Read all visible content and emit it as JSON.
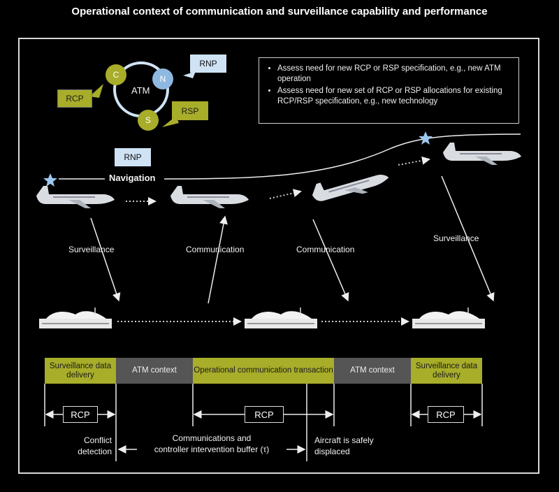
{
  "title": "Operational context of communication and surveillance capability and performance",
  "atm_cycle": {
    "center": "ATM",
    "nodes": [
      "C",
      "N",
      "S"
    ]
  },
  "callouts": {
    "rcp": "RCP",
    "rnp": "RNP",
    "rsp": "RSP",
    "rnp_nav": "RNP"
  },
  "note_items": [
    "Assess need for new RCP or RSP specification, e.g., new ATM operation",
    "Assess need for new set of RCP or RSP allocations for existing RCP/RSP specification, e.g., new technology"
  ],
  "flow_labels": {
    "navigation": "Navigation",
    "surveillance_1": "Surveillance",
    "communication_1": "Communication",
    "communication_2": "Communication",
    "surveillance_2": "Surveillance"
  },
  "timeline": [
    {
      "label": "Surveillance data delivery",
      "color": "#a8ad2a"
    },
    {
      "label": "ATM context",
      "color": "#555555"
    },
    {
      "label": "Operational communication transaction",
      "color": "#a8ad2a"
    },
    {
      "label": "ATM context",
      "color": "#555555"
    },
    {
      "label": "Surveillance data delivery",
      "color": "#a8ad2a"
    }
  ],
  "rcp_markers": [
    "RCP",
    "RCP",
    "RCP"
  ],
  "bottom_labels": {
    "conflict": "Conflict detection",
    "buffer_line1": "Communications and",
    "buffer_line2": "controller intervention buffer (τ)",
    "displaced": "Aircraft is safely displaced"
  },
  "colors": {
    "olive": "#a8ad2a",
    "callout_blue": "#cfe3f5",
    "gray": "#555555"
  }
}
